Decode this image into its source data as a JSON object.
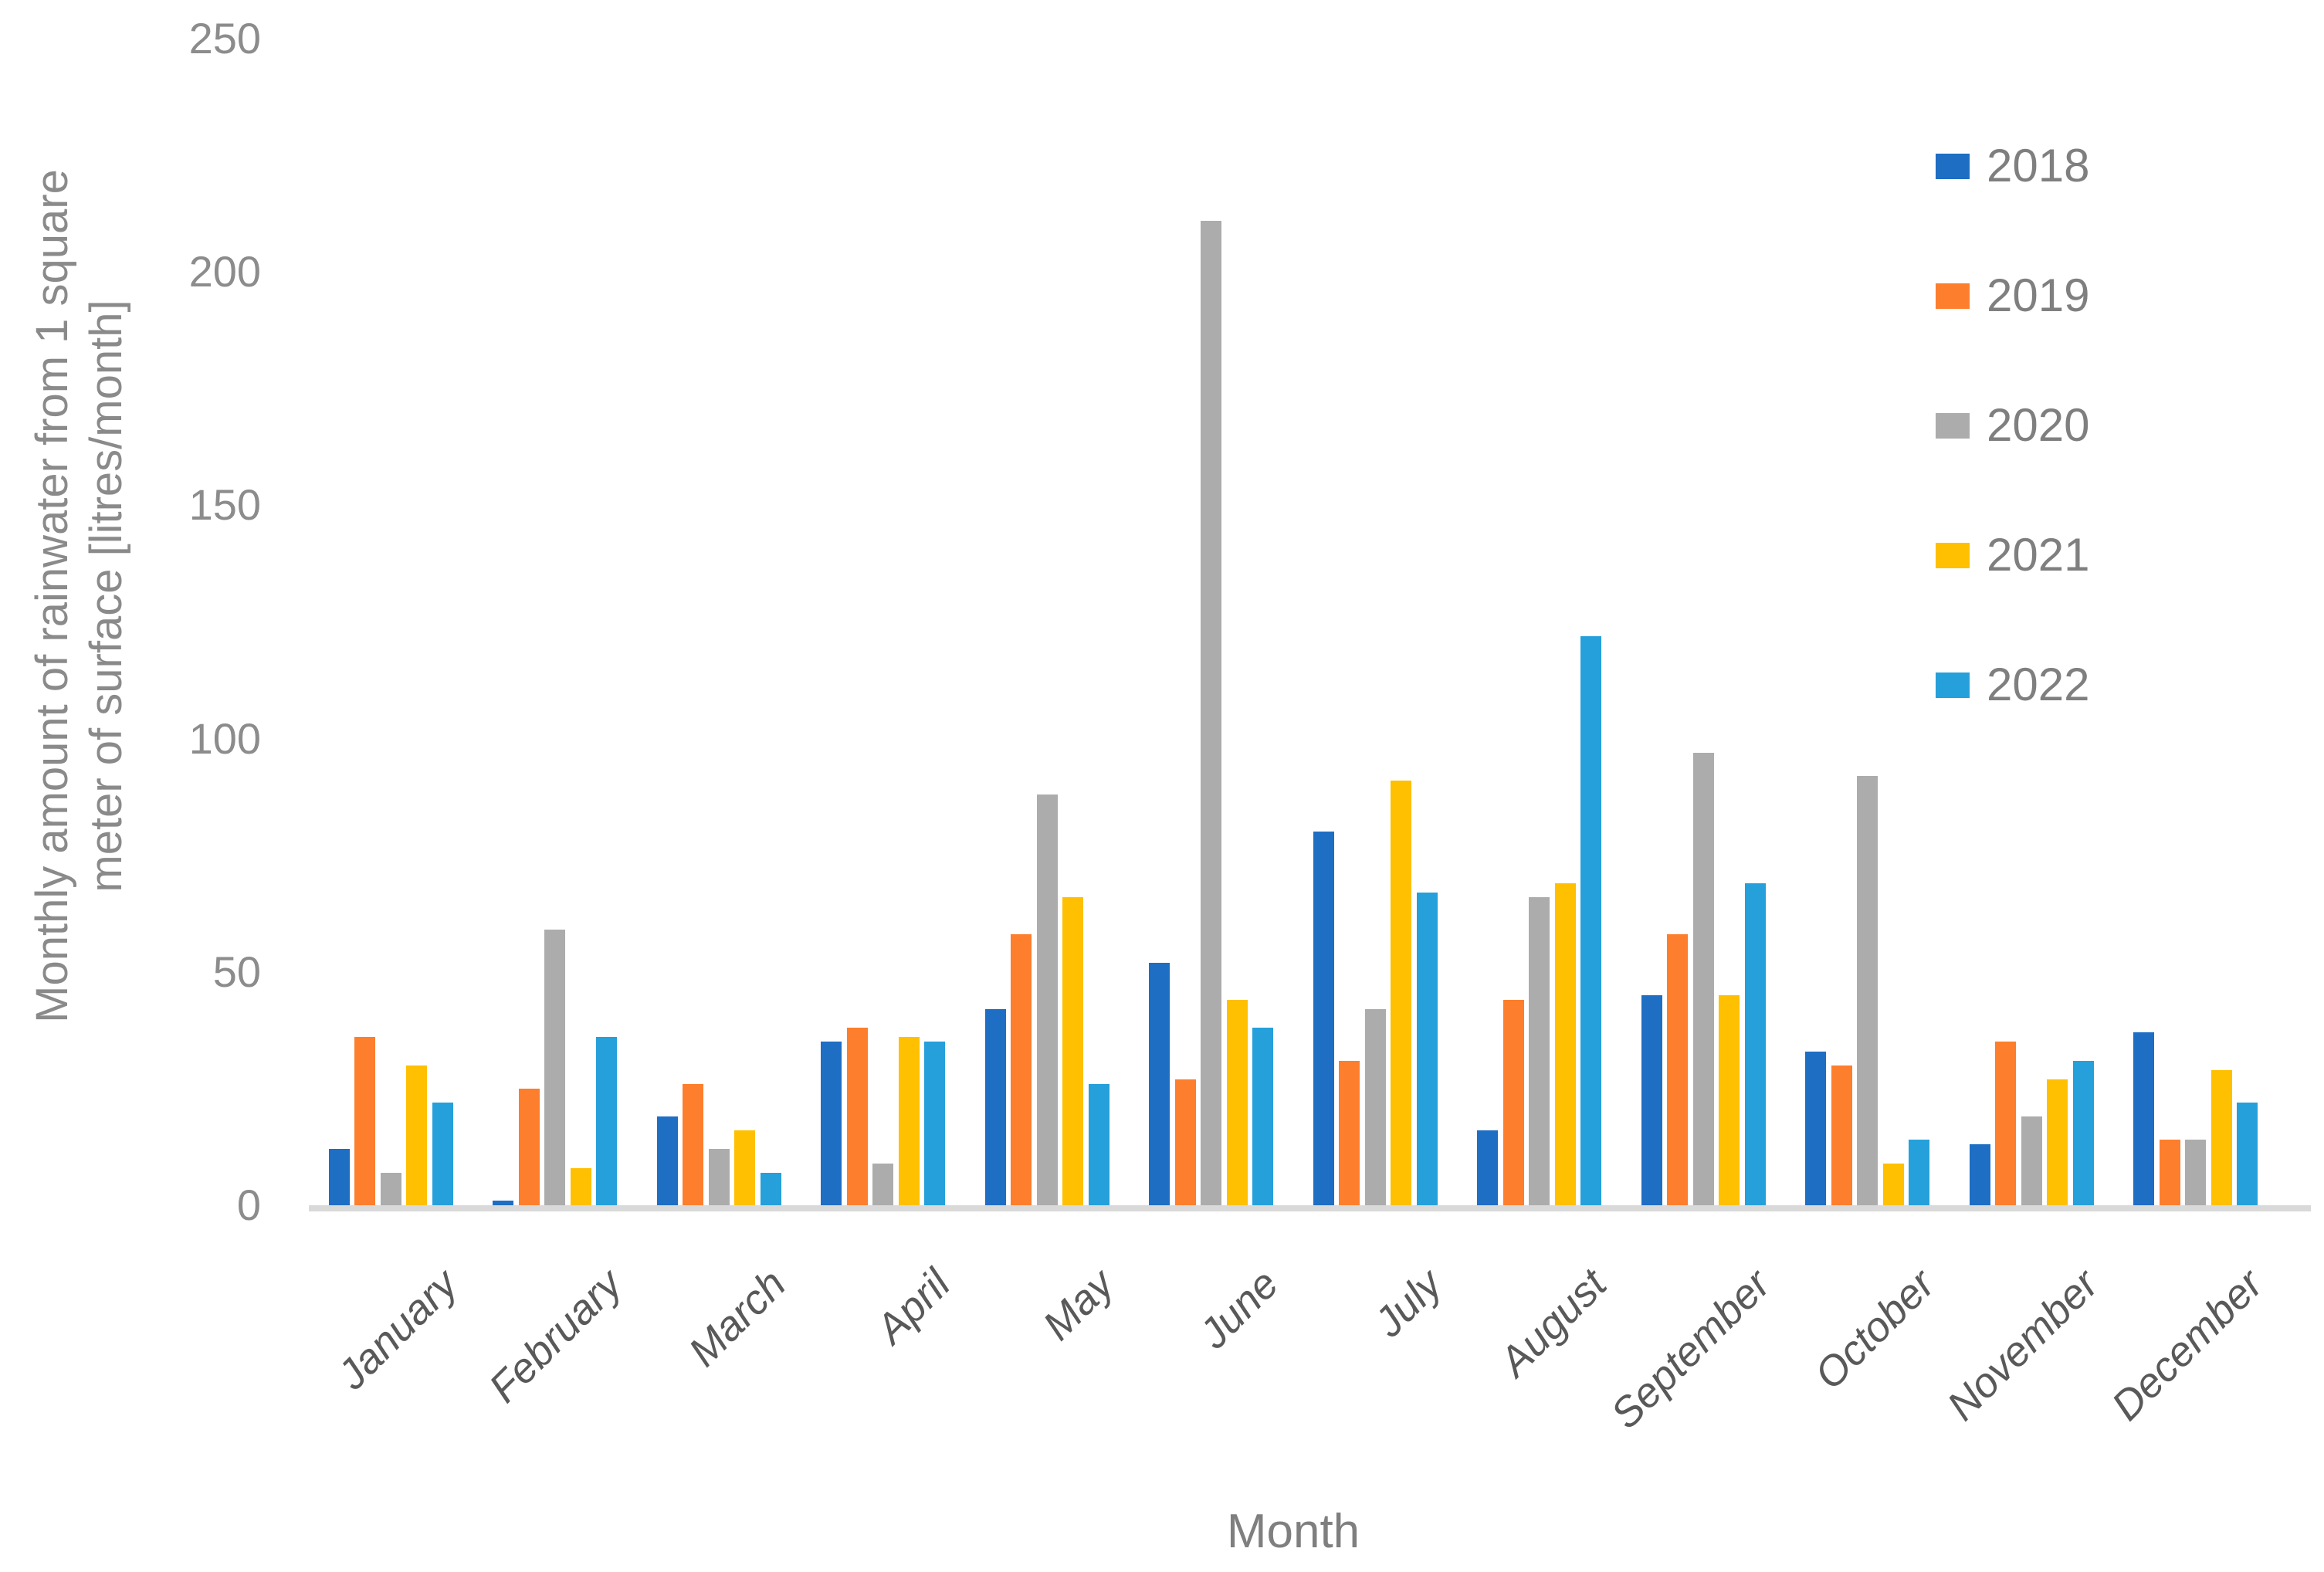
{
  "chart_data": {
    "type": "bar",
    "title": "",
    "xlabel": "Month",
    "ylabel": "Monthly amount of rainwater from 1 square meter of surface [litres/month]",
    "ylabel_lines": [
      "Monthly amount of rainwater from 1 square",
      "meter of surface [litres/month]"
    ],
    "categories": [
      "January",
      "February",
      "March",
      "April",
      "May",
      "June",
      "July",
      "August",
      "September",
      "October",
      "November",
      "December"
    ],
    "series": [
      {
        "name": "2018",
        "color": "#1e6ec4",
        "values": [
          12,
          1,
          19,
          35,
          42,
          52,
          80,
          16,
          45,
          33,
          13,
          37
        ]
      },
      {
        "name": "2019",
        "color": "#fd7e2d",
        "values": [
          36,
          25,
          26,
          38,
          58,
          27,
          31,
          44,
          58,
          30,
          35,
          14
        ]
      },
      {
        "name": "2020",
        "color": "#acacac",
        "values": [
          7,
          59,
          12,
          9,
          88,
          211,
          42,
          66,
          97,
          92,
          19,
          14
        ]
      },
      {
        "name": "2021",
        "color": "#fec000",
        "values": [
          30,
          8,
          16,
          36,
          66,
          44,
          91,
          69,
          45,
          9,
          27,
          29
        ]
      },
      {
        "name": "2022",
        "color": "#25a0db",
        "values": [
          22,
          36,
          7,
          35,
          26,
          38,
          67,
          122,
          69,
          14,
          31,
          22
        ]
      }
    ],
    "yticks": [
      0,
      50,
      100,
      150,
      200,
      250
    ],
    "ylim": [
      0,
      250
    ],
    "grid": false,
    "legend_position": "right-top"
  },
  "styles": {
    "background": "#ffffff",
    "axis_line_color": "#d9d9d9",
    "tick_text_color": "#8c8c8c",
    "month_label_color": "#595959",
    "axis_title_color": "#7f7f7f"
  }
}
